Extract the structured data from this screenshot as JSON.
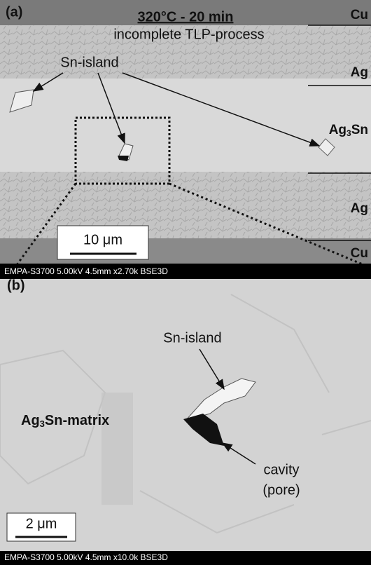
{
  "panel_a": {
    "label": "(a)",
    "title": "320°C - 20 min",
    "subtitle": "incomplete TLP-process",
    "annotation": "Sn-island",
    "layers": [
      {
        "name": "Cu"
      },
      {
        "name": "Ag"
      },
      {
        "name": "Ag",
        "sub": "3",
        "rest": "Sn"
      },
      {
        "name": "Ag"
      },
      {
        "name": "Cu"
      }
    ],
    "scale_bar": "10 μm",
    "info_bar": "EMPA-S3700 5.00kV 4.5mm x2.70k BSE3D"
  },
  "panel_b": {
    "label": "(b)",
    "annotation": "Sn-island",
    "matrix": {
      "name": "Ag",
      "sub": "3",
      "rest": "Sn-matrix"
    },
    "cavity": [
      "cavity",
      "(pore)"
    ],
    "scale_bar": "2 μm",
    "info_bar": "EMPA-S3700 5.00kV 4.5mm x10.0k BSE3D"
  }
}
